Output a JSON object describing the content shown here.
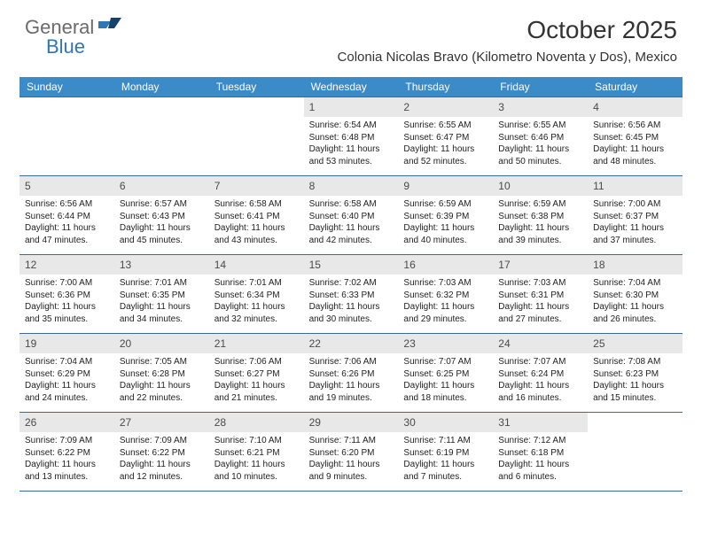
{
  "brand": {
    "part1": "General",
    "part2": "Blue"
  },
  "title": "October 2025",
  "location": "Colonia Nicolas Bravo (Kilometro Noventa y Dos), Mexico",
  "dayHeaders": [
    "Sunday",
    "Monday",
    "Tuesday",
    "Wednesday",
    "Thursday",
    "Friday",
    "Saturday"
  ],
  "colors": {
    "headerBar": "#3b8bc9",
    "rowBorder": "#3b6a92",
    "dayNumBg": "#e8e8e8",
    "logoAccent": "#2f76b5",
    "logoGray": "#6b6b6b",
    "text": "#222222"
  },
  "weeks": [
    [
      {
        "day": "",
        "empty": true
      },
      {
        "day": "",
        "empty": true
      },
      {
        "day": "",
        "empty": true
      },
      {
        "day": "1",
        "sunrise": "Sunrise: 6:54 AM",
        "sunset": "Sunset: 6:48 PM",
        "daylight1": "Daylight: 11 hours",
        "daylight2": "and 53 minutes."
      },
      {
        "day": "2",
        "sunrise": "Sunrise: 6:55 AM",
        "sunset": "Sunset: 6:47 PM",
        "daylight1": "Daylight: 11 hours",
        "daylight2": "and 52 minutes."
      },
      {
        "day": "3",
        "sunrise": "Sunrise: 6:55 AM",
        "sunset": "Sunset: 6:46 PM",
        "daylight1": "Daylight: 11 hours",
        "daylight2": "and 50 minutes."
      },
      {
        "day": "4",
        "sunrise": "Sunrise: 6:56 AM",
        "sunset": "Sunset: 6:45 PM",
        "daylight1": "Daylight: 11 hours",
        "daylight2": "and 48 minutes."
      }
    ],
    [
      {
        "day": "5",
        "sunrise": "Sunrise: 6:56 AM",
        "sunset": "Sunset: 6:44 PM",
        "daylight1": "Daylight: 11 hours",
        "daylight2": "and 47 minutes."
      },
      {
        "day": "6",
        "sunrise": "Sunrise: 6:57 AM",
        "sunset": "Sunset: 6:43 PM",
        "daylight1": "Daylight: 11 hours",
        "daylight2": "and 45 minutes."
      },
      {
        "day": "7",
        "sunrise": "Sunrise: 6:58 AM",
        "sunset": "Sunset: 6:41 PM",
        "daylight1": "Daylight: 11 hours",
        "daylight2": "and 43 minutes."
      },
      {
        "day": "8",
        "sunrise": "Sunrise: 6:58 AM",
        "sunset": "Sunset: 6:40 PM",
        "daylight1": "Daylight: 11 hours",
        "daylight2": "and 42 minutes."
      },
      {
        "day": "9",
        "sunrise": "Sunrise: 6:59 AM",
        "sunset": "Sunset: 6:39 PM",
        "daylight1": "Daylight: 11 hours",
        "daylight2": "and 40 minutes."
      },
      {
        "day": "10",
        "sunrise": "Sunrise: 6:59 AM",
        "sunset": "Sunset: 6:38 PM",
        "daylight1": "Daylight: 11 hours",
        "daylight2": "and 39 minutes."
      },
      {
        "day": "11",
        "sunrise": "Sunrise: 7:00 AM",
        "sunset": "Sunset: 6:37 PM",
        "daylight1": "Daylight: 11 hours",
        "daylight2": "and 37 minutes."
      }
    ],
    [
      {
        "day": "12",
        "sunrise": "Sunrise: 7:00 AM",
        "sunset": "Sunset: 6:36 PM",
        "daylight1": "Daylight: 11 hours",
        "daylight2": "and 35 minutes."
      },
      {
        "day": "13",
        "sunrise": "Sunrise: 7:01 AM",
        "sunset": "Sunset: 6:35 PM",
        "daylight1": "Daylight: 11 hours",
        "daylight2": "and 34 minutes."
      },
      {
        "day": "14",
        "sunrise": "Sunrise: 7:01 AM",
        "sunset": "Sunset: 6:34 PM",
        "daylight1": "Daylight: 11 hours",
        "daylight2": "and 32 minutes."
      },
      {
        "day": "15",
        "sunrise": "Sunrise: 7:02 AM",
        "sunset": "Sunset: 6:33 PM",
        "daylight1": "Daylight: 11 hours",
        "daylight2": "and 30 minutes."
      },
      {
        "day": "16",
        "sunrise": "Sunrise: 7:03 AM",
        "sunset": "Sunset: 6:32 PM",
        "daylight1": "Daylight: 11 hours",
        "daylight2": "and 29 minutes."
      },
      {
        "day": "17",
        "sunrise": "Sunrise: 7:03 AM",
        "sunset": "Sunset: 6:31 PM",
        "daylight1": "Daylight: 11 hours",
        "daylight2": "and 27 minutes."
      },
      {
        "day": "18",
        "sunrise": "Sunrise: 7:04 AM",
        "sunset": "Sunset: 6:30 PM",
        "daylight1": "Daylight: 11 hours",
        "daylight2": "and 26 minutes."
      }
    ],
    [
      {
        "day": "19",
        "sunrise": "Sunrise: 7:04 AM",
        "sunset": "Sunset: 6:29 PM",
        "daylight1": "Daylight: 11 hours",
        "daylight2": "and 24 minutes."
      },
      {
        "day": "20",
        "sunrise": "Sunrise: 7:05 AM",
        "sunset": "Sunset: 6:28 PM",
        "daylight1": "Daylight: 11 hours",
        "daylight2": "and 22 minutes."
      },
      {
        "day": "21",
        "sunrise": "Sunrise: 7:06 AM",
        "sunset": "Sunset: 6:27 PM",
        "daylight1": "Daylight: 11 hours",
        "daylight2": "and 21 minutes."
      },
      {
        "day": "22",
        "sunrise": "Sunrise: 7:06 AM",
        "sunset": "Sunset: 6:26 PM",
        "daylight1": "Daylight: 11 hours",
        "daylight2": "and 19 minutes."
      },
      {
        "day": "23",
        "sunrise": "Sunrise: 7:07 AM",
        "sunset": "Sunset: 6:25 PM",
        "daylight1": "Daylight: 11 hours",
        "daylight2": "and 18 minutes."
      },
      {
        "day": "24",
        "sunrise": "Sunrise: 7:07 AM",
        "sunset": "Sunset: 6:24 PM",
        "daylight1": "Daylight: 11 hours",
        "daylight2": "and 16 minutes."
      },
      {
        "day": "25",
        "sunrise": "Sunrise: 7:08 AM",
        "sunset": "Sunset: 6:23 PM",
        "daylight1": "Daylight: 11 hours",
        "daylight2": "and 15 minutes."
      }
    ],
    [
      {
        "day": "26",
        "sunrise": "Sunrise: 7:09 AM",
        "sunset": "Sunset: 6:22 PM",
        "daylight1": "Daylight: 11 hours",
        "daylight2": "and 13 minutes."
      },
      {
        "day": "27",
        "sunrise": "Sunrise: 7:09 AM",
        "sunset": "Sunset: 6:22 PM",
        "daylight1": "Daylight: 11 hours",
        "daylight2": "and 12 minutes."
      },
      {
        "day": "28",
        "sunrise": "Sunrise: 7:10 AM",
        "sunset": "Sunset: 6:21 PM",
        "daylight1": "Daylight: 11 hours",
        "daylight2": "and 10 minutes."
      },
      {
        "day": "29",
        "sunrise": "Sunrise: 7:11 AM",
        "sunset": "Sunset: 6:20 PM",
        "daylight1": "Daylight: 11 hours",
        "daylight2": "and 9 minutes."
      },
      {
        "day": "30",
        "sunrise": "Sunrise: 7:11 AM",
        "sunset": "Sunset: 6:19 PM",
        "daylight1": "Daylight: 11 hours",
        "daylight2": "and 7 minutes."
      },
      {
        "day": "31",
        "sunrise": "Sunrise: 7:12 AM",
        "sunset": "Sunset: 6:18 PM",
        "daylight1": "Daylight: 11 hours",
        "daylight2": "and 6 minutes."
      },
      {
        "day": "",
        "empty": true
      }
    ]
  ]
}
